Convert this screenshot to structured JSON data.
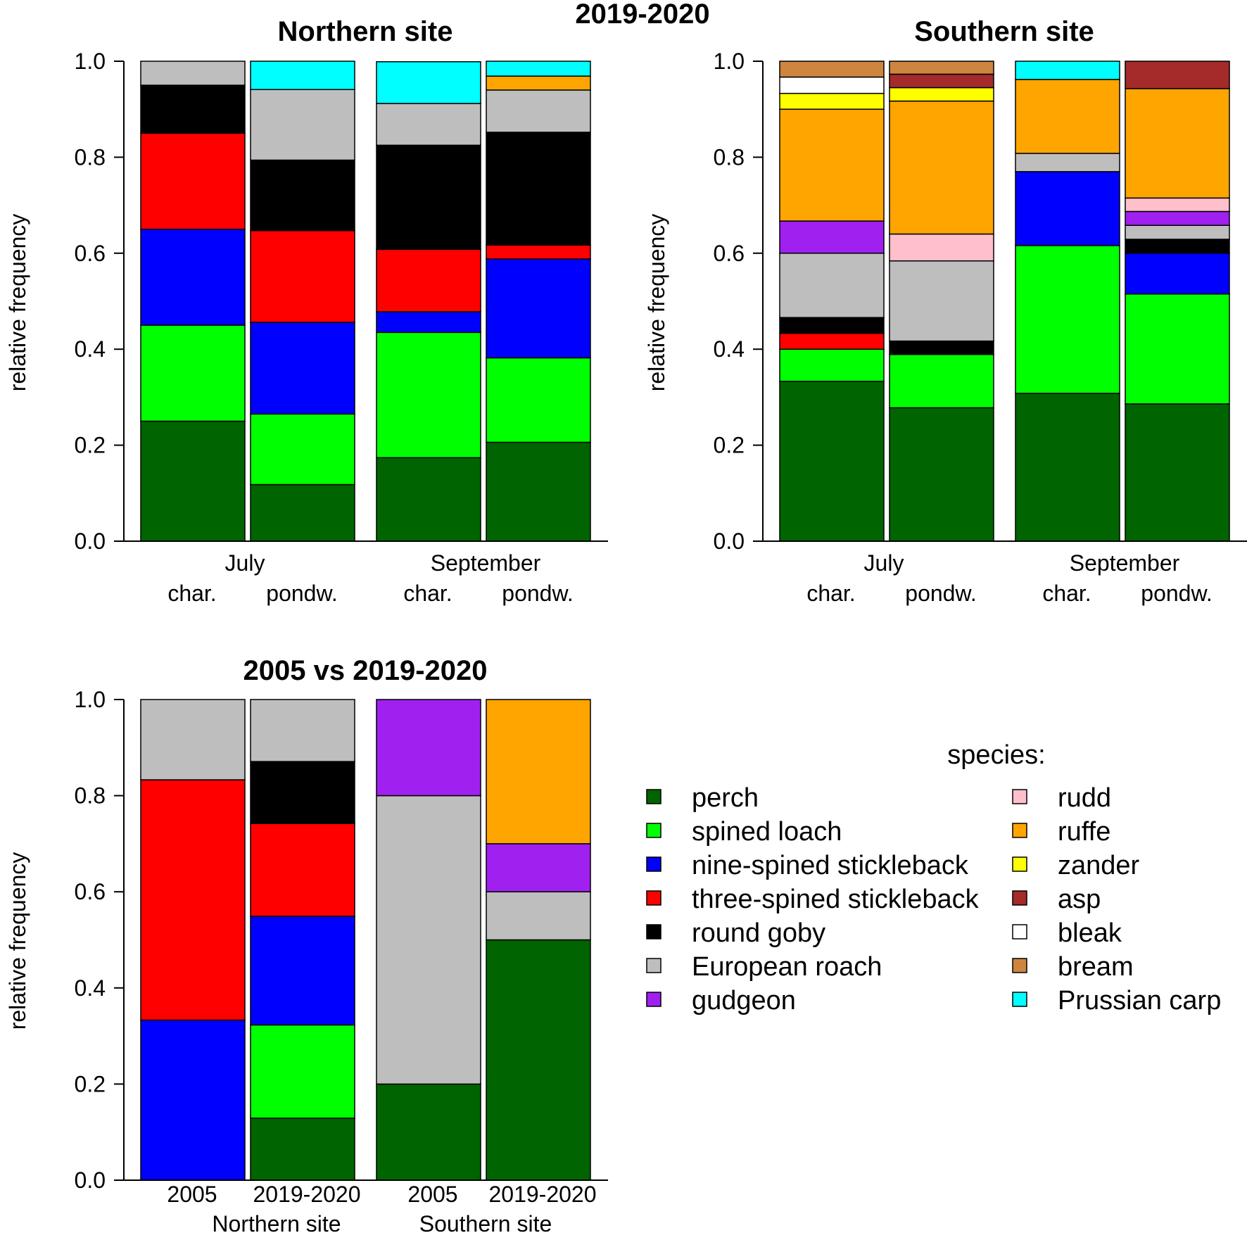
{
  "figure_title": "2019-2020",
  "legend": {
    "title": "species:",
    "items": [
      {
        "key": "perch",
        "label": "perch",
        "color": "#006400"
      },
      {
        "key": "spined_loach",
        "label": "spined loach",
        "color": "#00ff00"
      },
      {
        "key": "nine_spined",
        "label": "nine-spined stickleback",
        "color": "#0000ff"
      },
      {
        "key": "three_spined",
        "label": "three-spined stickleback",
        "color": "#ff0000"
      },
      {
        "key": "round_goby",
        "label": "round goby",
        "color": "#000000"
      },
      {
        "key": "roach",
        "label": "European roach",
        "color": "#bebebe"
      },
      {
        "key": "gudgeon",
        "label": "gudgeon",
        "color": "#a020f0"
      },
      {
        "key": "rudd",
        "label": "rudd",
        "color": "#ffc0cb"
      },
      {
        "key": "ruffe",
        "label": "ruffe",
        "color": "#ffa500"
      },
      {
        "key": "zander",
        "label": "zander",
        "color": "#ffff00"
      },
      {
        "key": "asp",
        "label": "asp",
        "color": "#a52a2a"
      },
      {
        "key": "bleak",
        "label": "bleak",
        "color": "#ffffff"
      },
      {
        "key": "bream",
        "label": "bream",
        "color": "#cd853f"
      },
      {
        "key": "prussian_carp",
        "label": "Prussian carp",
        "color": "#00ffff"
      }
    ]
  },
  "chart_data": [
    {
      "type": "bar",
      "stacked": true,
      "title": "Northern site",
      "ylabel": "relative frequency",
      "ylim": [
        0,
        1
      ],
      "yticks": [
        "0.0",
        "0.2",
        "0.4",
        "0.6",
        "0.8",
        "1.0"
      ],
      "group_labels": [
        "July",
        "September"
      ],
      "categories": [
        "char.",
        "pondw.",
        "char.",
        "pondw."
      ],
      "bars": [
        [
          [
            "perch",
            0.25
          ],
          [
            "spined_loach",
            0.2
          ],
          [
            "nine_spined",
            0.2
          ],
          [
            "three_spined",
            0.2
          ],
          [
            "round_goby",
            0.1
          ],
          [
            "roach",
            0.05
          ]
        ],
        [
          [
            "perch",
            0.118
          ],
          [
            "spined_loach",
            0.147
          ],
          [
            "nine_spined",
            0.191
          ],
          [
            "three_spined",
            0.191
          ],
          [
            "round_goby",
            0.147
          ],
          [
            "roach",
            0.147
          ],
          [
            "prussian_carp",
            0.059
          ]
        ],
        [
          [
            "perch",
            0.174
          ],
          [
            "spined_loach",
            0.261
          ],
          [
            "nine_spined",
            0.043
          ],
          [
            "three_spined",
            0.13
          ],
          [
            "round_goby",
            0.217
          ],
          [
            "roach",
            0.087
          ],
          [
            "prussian_carp",
            0.087
          ]
        ],
        [
          [
            "perch",
            0.206
          ],
          [
            "spined_loach",
            0.176
          ],
          [
            "nine_spined",
            0.206
          ],
          [
            "three_spined",
            0.029
          ],
          [
            "round_goby",
            0.235
          ],
          [
            "roach",
            0.088
          ],
          [
            "ruffe",
            0.029
          ],
          [
            "prussian_carp",
            0.031
          ]
        ]
      ]
    },
    {
      "type": "bar",
      "stacked": true,
      "title": "Southern site",
      "ylabel": "relative frequency",
      "ylim": [
        0,
        1
      ],
      "yticks": [
        "0.0",
        "0.2",
        "0.4",
        "0.6",
        "0.8",
        "1.0"
      ],
      "group_labels": [
        "July",
        "September"
      ],
      "categories": [
        "char.",
        "pondw.",
        "char.",
        "pondw."
      ],
      "bars": [
        [
          [
            "perch",
            0.333
          ],
          [
            "spined_loach",
            0.067
          ],
          [
            "three_spined",
            0.033
          ],
          [
            "round_goby",
            0.033
          ],
          [
            "roach",
            0.134
          ],
          [
            "gudgeon",
            0.067
          ],
          [
            "ruffe",
            0.233
          ],
          [
            "zander",
            0.033
          ],
          [
            "bleak",
            0.034
          ],
          [
            "bream",
            0.033
          ]
        ],
        [
          [
            "perch",
            0.278
          ],
          [
            "spined_loach",
            0.111
          ],
          [
            "round_goby",
            0.028
          ],
          [
            "roach",
            0.167
          ],
          [
            "rudd",
            0.056
          ],
          [
            "ruffe",
            0.277
          ],
          [
            "zander",
            0.028
          ],
          [
            "asp",
            0.028
          ],
          [
            "bream",
            0.027
          ]
        ],
        [
          [
            "perch",
            0.308
          ],
          [
            "spined_loach",
            0.308
          ],
          [
            "nine_spined",
            0.154
          ],
          [
            "roach",
            0.038
          ],
          [
            "ruffe",
            0.154
          ],
          [
            "prussian_carp",
            0.038
          ]
        ],
        [
          [
            "perch",
            0.286
          ],
          [
            "spined_loach",
            0.229
          ],
          [
            "nine_spined",
            0.085
          ],
          [
            "round_goby",
            0.029
          ],
          [
            "roach",
            0.029
          ],
          [
            "gudgeon",
            0.029
          ],
          [
            "rudd",
            0.028
          ],
          [
            "ruffe",
            0.228
          ],
          [
            "asp",
            0.057
          ]
        ]
      ]
    },
    {
      "type": "bar",
      "stacked": true,
      "title": "2005 vs 2019-2020",
      "ylabel": "relative frequency",
      "ylim": [
        0,
        1
      ],
      "yticks": [
        "0.0",
        "0.2",
        "0.4",
        "0.6",
        "0.8",
        "1.0"
      ],
      "group_labels": [
        "Northern site",
        "Southern site"
      ],
      "categories": [
        "2005",
        "2019-2020",
        "2005",
        "2019-2020"
      ],
      "bars": [
        [
          [
            "nine_spined",
            0.333
          ],
          [
            "three_spined",
            0.5
          ],
          [
            "roach",
            0.167
          ]
        ],
        [
          [
            "perch",
            0.129
          ],
          [
            "spined_loach",
            0.194
          ],
          [
            "nine_spined",
            0.226
          ],
          [
            "three_spined",
            0.193
          ],
          [
            "round_goby",
            0.129
          ],
          [
            "roach",
            0.129
          ]
        ],
        [
          [
            "perch",
            0.2
          ],
          [
            "roach",
            0.6
          ],
          [
            "gudgeon",
            0.2
          ]
        ],
        [
          [
            "perch",
            0.5
          ],
          [
            "roach",
            0.1
          ],
          [
            "gudgeon",
            0.1
          ],
          [
            "ruffe",
            0.3
          ]
        ]
      ]
    }
  ]
}
